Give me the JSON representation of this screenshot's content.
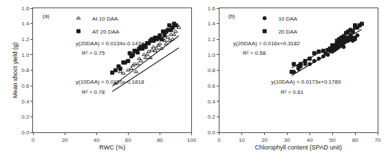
{
  "chart_data": [
    {
      "type": "scatter",
      "xlabel": "RWC (%)",
      "ylabel": "Mean shoot yield (g)",
      "xlim": [
        0,
        100
      ],
      "ylim": [
        0.0,
        1.6
      ],
      "xticks": [
        0,
        20,
        40,
        60,
        80,
        100
      ],
      "yticks": [
        {
          "value": 0.0,
          "label": "0.0"
        },
        0.2,
        0.4,
        0.6,
        0.8,
        {
          "value": 1.0,
          "label": "1.0"
        },
        1.2,
        1.4,
        1.6
      ],
      "grid": false,
      "legend": "upper left",
      "color": "#1a1a1a",
      "annotations": [
        "(a)",
        "y(20DAA) = 0.0134x-0.1434",
        "R² = 0.75",
        "y(10DAA) = 0.0155x-0.1818",
        "R² = 0.78"
      ],
      "series": [
        {
          "name": "At 10 DAA",
          "type": "scatter",
          "marker": "triangle-up-open",
          "x": [
            52,
            55,
            57,
            60,
            62,
            63,
            64,
            65,
            66,
            67,
            68,
            70,
            71,
            72,
            73,
            74,
            75,
            76,
            77,
            78,
            79,
            80,
            81,
            82,
            83,
            84,
            85,
            86,
            87,
            88,
            89,
            90,
            91,
            92
          ],
          "values": [
            0.63,
            0.78,
            0.76,
            0.8,
            0.82,
            0.86,
            0.88,
            0.78,
            0.88,
            0.95,
            0.92,
            1.0,
            0.96,
            1.0,
            1.04,
            0.96,
            1.06,
            1.1,
            1.05,
            1.08,
            1.12,
            1.14,
            1.08,
            1.2,
            1.18,
            1.14,
            1.22,
            1.18,
            1.26,
            1.2,
            1.26,
            1.3,
            1.38,
            1.35
          ]
        },
        {
          "name": "AT 20 DAA",
          "type": "scatter",
          "marker": "square",
          "x": [
            50,
            52,
            54,
            55,
            57,
            58,
            60,
            61,
            62,
            63,
            64,
            65,
            66,
            67,
            68,
            69,
            70,
            71,
            72,
            73,
            74,
            75,
            76,
            77,
            78,
            79,
            80,
            81,
            82,
            83,
            84,
            85,
            86,
            87,
            88,
            89,
            90
          ],
          "values": [
            0.77,
            0.8,
            0.85,
            0.82,
            0.9,
            0.9,
            0.92,
            1.02,
            0.98,
            1.0,
            1.05,
            1.05,
            1.03,
            1.08,
            1.1,
            1.08,
            1.12,
            1.1,
            1.15,
            1.15,
            1.18,
            1.2,
            1.18,
            1.22,
            1.2,
            1.22,
            1.25,
            1.2,
            1.3,
            1.25,
            1.3,
            1.32,
            1.38,
            1.32,
            1.35,
            1.4,
            1.38
          ]
        },
        {
          "type": "line",
          "line_style": "solid",
          "x": [
            50,
            92
          ],
          "values": [
            0.5932,
            1.2442
          ]
        },
        {
          "type": "line",
          "line_style": "solid",
          "x": [
            50,
            92
          ],
          "values": [
            0.5266,
            1.0894
          ]
        }
      ]
    },
    {
      "type": "scatter",
      "xlabel": "Chlorophyll content (SPAD unit)",
      "xlim": [
        0,
        70
      ],
      "ylim": [
        0.0,
        1.6
      ],
      "xticks": [
        0,
        10,
        20,
        30,
        40,
        50,
        60,
        70
      ],
      "yticks": [
        {
          "value": 0.0,
          "label": "0.0"
        },
        0.2,
        0.4,
        0.6,
        0.8,
        {
          "value": 1.0,
          "label": "1.0"
        },
        1.2,
        1.4,
        1.6
      ],
      "grid": false,
      "legend": "upper left",
      "color": "#1a1a1a",
      "annotations": [
        "(b)",
        "y(20DAA) = 0.016x+0.3182",
        "R² = 0.58",
        "y(10DAA) = 0.0173x+0.1789",
        "R² = 0.61"
      ],
      "series": [
        {
          "name": "10 DAA",
          "type": "scatter",
          "marker": "circle",
          "x": [
            33,
            35,
            36,
            38,
            40,
            42,
            44,
            46,
            47,
            48,
            49,
            50,
            50,
            51,
            51,
            52,
            52,
            53,
            53,
            54,
            54,
            55,
            55,
            55,
            56,
            56,
            57,
            57,
            58,
            58,
            59,
            59,
            60,
            60,
            61
          ],
          "values": [
            0.78,
            0.82,
            0.85,
            0.88,
            0.88,
            0.92,
            0.95,
            0.98,
            1.02,
            1.0,
            1.05,
            1.04,
            1.08,
            1.06,
            1.1,
            1.08,
            1.12,
            1.1,
            1.14,
            1.12,
            1.16,
            1.15,
            1.2,
            1.1,
            1.18,
            1.22,
            1.18,
            1.2,
            1.2,
            1.22,
            1.22,
            1.18,
            1.2,
            1.22,
            1.25
          ]
        },
        {
          "name": "20 DAA",
          "type": "scatter",
          "marker": "square",
          "x": [
            32,
            33,
            35,
            36,
            38,
            40,
            42,
            44,
            46,
            48,
            49,
            50,
            50,
            51,
            51,
            52,
            52,
            53,
            53,
            54,
            54,
            55,
            55,
            56,
            56,
            57,
            57,
            58,
            58,
            59,
            60,
            60,
            61,
            62,
            63
          ],
          "values": [
            0.78,
            0.88,
            0.85,
            0.88,
            0.92,
            0.95,
            1.02,
            1.04,
            1.05,
            1.06,
            1.08,
            1.08,
            1.12,
            1.1,
            1.12,
            1.14,
            1.18,
            1.15,
            1.2,
            1.18,
            1.22,
            1.2,
            1.24,
            1.22,
            1.28,
            1.22,
            1.3,
            1.25,
            1.32,
            1.3,
            1.38,
            1.35,
            1.35,
            1.38,
            1.4
          ]
        },
        {
          "type": "line",
          "line_style": "solid",
          "x": [
            32,
            62
          ],
          "values": [
            0.7325,
            1.2515
          ]
        },
        {
          "type": "line",
          "line_style": "solid",
          "x": [
            32,
            63
          ],
          "values": [
            0.8302,
            1.3262
          ]
        }
      ]
    }
  ]
}
